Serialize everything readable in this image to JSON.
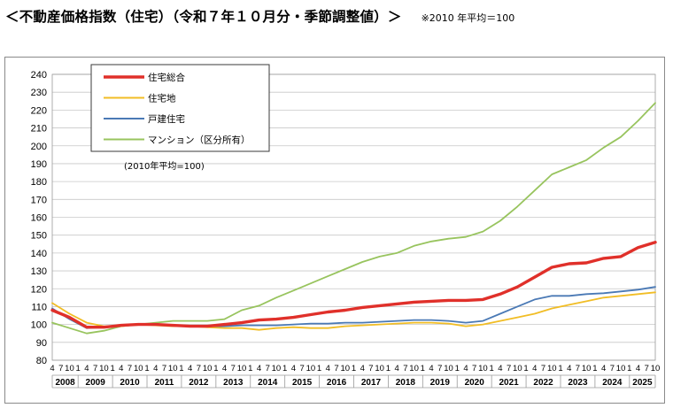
{
  "header": {
    "title": "＜不動産価格指数（住宅）（令和７年１０月分・季節調整値）＞",
    "note": "※2010 年平均＝100"
  },
  "chart_data": {
    "type": "line",
    "title": "",
    "ylabel": "",
    "xlabel": "",
    "base_note": "(2010年平均=100)",
    "ylim": [
      80,
      240
    ],
    "yticks": [
      80,
      90,
      100,
      110,
      120,
      130,
      140,
      150,
      160,
      170,
      180,
      190,
      200,
      210,
      220,
      230,
      240
    ],
    "x_start": "2008-04",
    "x_end": "2025-10",
    "year_labels": [
      "2008",
      "2009",
      "2010",
      "2011",
      "2012",
      "2013",
      "2014",
      "2015",
      "2016",
      "2017",
      "2018",
      "2019",
      "2020",
      "2021",
      "2022",
      "2023",
      "2024",
      "2025"
    ],
    "month_ticks": [
      "4",
      "7",
      "10",
      "1"
    ],
    "grid": true,
    "legend": "top-left",
    "series": [
      {
        "name": "住宅総合",
        "color": "#e0302a",
        "x": [
          "2008-04",
          "2008-10",
          "2009-04",
          "2009-10",
          "2010-04",
          "2010-10",
          "2011-04",
          "2011-10",
          "2012-04",
          "2012-10",
          "2013-04",
          "2013-10",
          "2014-04",
          "2014-10",
          "2015-04",
          "2015-10",
          "2016-04",
          "2016-10",
          "2017-04",
          "2017-10",
          "2018-04",
          "2018-10",
          "2019-04",
          "2019-10",
          "2020-04",
          "2020-10",
          "2021-04",
          "2021-10",
          "2022-04",
          "2022-10",
          "2023-04",
          "2023-10",
          "2024-04",
          "2024-10",
          "2025-04",
          "2025-10"
        ],
        "y": [
          108,
          104,
          98.5,
          98.5,
          99.5,
          100,
          100,
          99.5,
          99,
          99,
          100,
          101,
          102.5,
          103,
          104,
          105.5,
          107,
          108,
          109.5,
          110.5,
          111.5,
          112.5,
          113,
          113.5,
          113.5,
          114,
          117,
          121,
          126.5,
          132,
          134,
          134.5,
          137,
          138,
          143,
          146
        ]
      },
      {
        "name": "住宅地",
        "color": "#f1bd25",
        "x": [
          "2008-04",
          "2008-10",
          "2009-04",
          "2009-10",
          "2010-04",
          "2010-10",
          "2011-04",
          "2011-10",
          "2012-04",
          "2012-10",
          "2013-04",
          "2013-10",
          "2014-04",
          "2014-10",
          "2015-04",
          "2015-10",
          "2016-04",
          "2016-10",
          "2017-04",
          "2017-10",
          "2018-04",
          "2018-10",
          "2019-04",
          "2019-10",
          "2020-04",
          "2020-10",
          "2021-04",
          "2021-10",
          "2022-04",
          "2022-10",
          "2023-04",
          "2023-10",
          "2024-04",
          "2024-10",
          "2025-04",
          "2025-10"
        ],
        "y": [
          112,
          106,
          101,
          99,
          99,
          100,
          99.5,
          99,
          99,
          98.5,
          98,
          98,
          97,
          98,
          98.5,
          98,
          98,
          99,
          99.5,
          100,
          100.5,
          101,
          101,
          100.5,
          99,
          100,
          102,
          104,
          106,
          109,
          111,
          113,
          115,
          116,
          117,
          118
        ]
      },
      {
        "name": "戸建住宅",
        "color": "#4a79b5",
        "x": [
          "2008-04",
          "2008-10",
          "2009-04",
          "2009-10",
          "2010-04",
          "2010-10",
          "2011-04",
          "2011-10",
          "2012-04",
          "2012-10",
          "2013-04",
          "2013-10",
          "2014-04",
          "2014-10",
          "2015-04",
          "2015-10",
          "2016-04",
          "2016-10",
          "2017-04",
          "2017-10",
          "2018-04",
          "2018-10",
          "2019-04",
          "2019-10",
          "2020-04",
          "2020-10",
          "2021-04",
          "2021-10",
          "2022-04",
          "2022-10",
          "2023-04",
          "2023-10",
          "2024-04",
          "2024-10",
          "2025-04",
          "2025-10"
        ],
        "y": [
          109,
          103,
          98,
          98.5,
          99.5,
          100,
          100,
          99.5,
          99,
          99,
          99,
          99.5,
          99.5,
          99.5,
          100,
          100.5,
          100.5,
          101,
          101,
          101.5,
          102,
          102.5,
          102.5,
          102,
          101,
          102,
          106,
          110,
          114,
          116,
          116,
          117,
          117.5,
          118.5,
          119.5,
          121
        ]
      },
      {
        "name": "マンション（区分所有）",
        "color": "#98c45e",
        "x": [
          "2008-04",
          "2008-10",
          "2009-04",
          "2009-10",
          "2010-04",
          "2010-10",
          "2011-04",
          "2011-10",
          "2012-04",
          "2012-10",
          "2013-04",
          "2013-10",
          "2014-04",
          "2014-10",
          "2015-04",
          "2015-10",
          "2016-04",
          "2016-10",
          "2017-04",
          "2017-10",
          "2018-04",
          "2018-10",
          "2019-04",
          "2019-10",
          "2020-04",
          "2020-10",
          "2021-04",
          "2021-10",
          "2022-04",
          "2022-10",
          "2023-04",
          "2023-10",
          "2024-04",
          "2024-10",
          "2025-04",
          "2025-10"
        ],
        "y": [
          101,
          98,
          95,
          96.5,
          99,
          100,
          101,
          102,
          102,
          102,
          103,
          108,
          110.5,
          115,
          119,
          123,
          127,
          131,
          135,
          138,
          140,
          144,
          146.5,
          148,
          149,
          152,
          158,
          166,
          175,
          184,
          188,
          192,
          199,
          205,
          214,
          224
        ]
      }
    ]
  }
}
